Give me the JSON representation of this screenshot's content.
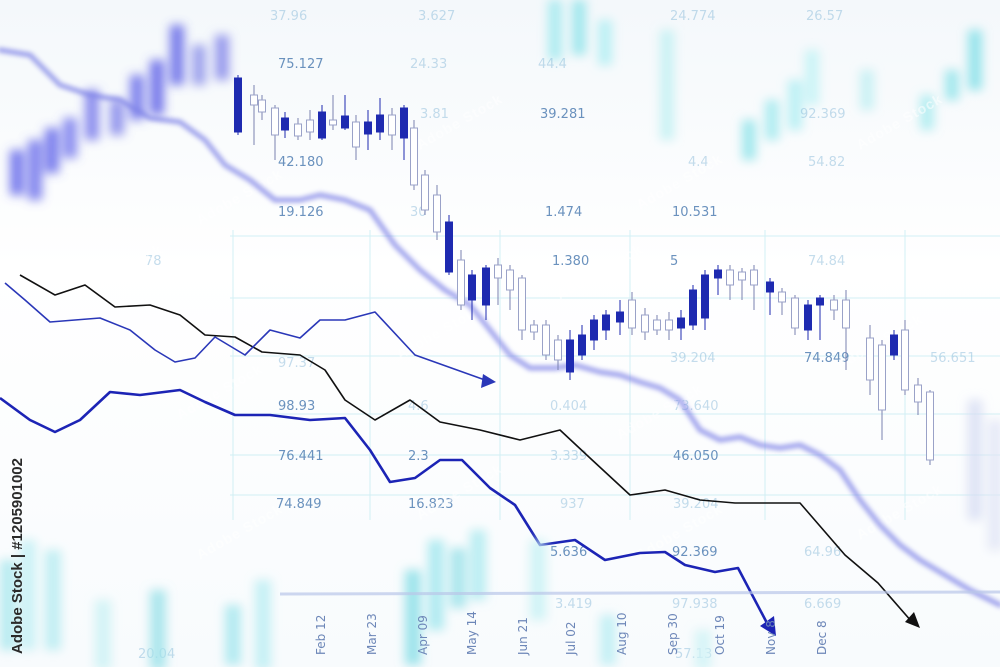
{
  "image": {
    "stock_id_text": "Adobe Stock | #1205901002",
    "watermark_text": "Adobe Stock",
    "date_labels": [
      "Feb 12",
      "Mar 23",
      "Apr 09",
      "May 14",
      "Jun 21",
      "Jul 02",
      "Aug 10",
      "Sep 30",
      "Oct 19",
      "Nov 8",
      "Dec 8"
    ],
    "numbers": [
      {
        "text": "37.96",
        "faint": true
      },
      {
        "text": "3.627",
        "faint": true
      },
      {
        "text": "24.774",
        "faint": true
      },
      {
        "text": "26.57",
        "faint": true
      },
      {
        "text": "75.127",
        "faint": false
      },
      {
        "text": "24.33",
        "faint": true
      },
      {
        "text": "44.4",
        "faint": true
      },
      {
        "text": "3.81",
        "faint": true
      },
      {
        "text": "39.281",
        "faint": false
      },
      {
        "text": "92.369",
        "faint": true
      },
      {
        "text": "42.180",
        "faint": false
      },
      {
        "text": "4.4",
        "faint": true
      },
      {
        "text": "54.82",
        "faint": true
      },
      {
        "text": "19.126",
        "faint": false
      },
      {
        "text": "30",
        "faint": true
      },
      {
        "text": "1.474",
        "faint": false
      },
      {
        "text": "10.531",
        "faint": false
      },
      {
        "text": "78",
        "faint": true
      },
      {
        "text": "1.380",
        "faint": false
      },
      {
        "text": "5",
        "faint": false
      },
      {
        "text": "74.84",
        "faint": true
      },
      {
        "text": "39.204",
        "faint": true
      },
      {
        "text": "74.849",
        "faint": false
      },
      {
        "text": "56.651",
        "faint": true
      },
      {
        "text": "97.37",
        "faint": true
      },
      {
        "text": "98.93",
        "faint": false
      },
      {
        "text": "4.6",
        "faint": true
      },
      {
        "text": "0.404",
        "faint": true
      },
      {
        "text": "73.640",
        "faint": true
      },
      {
        "text": "76.441",
        "faint": false
      },
      {
        "text": "2.3",
        "faint": false
      },
      {
        "text": "3.339",
        "faint": true
      },
      {
        "text": "46.050",
        "faint": false
      },
      {
        "text": "74.849",
        "faint": false
      },
      {
        "text": "16.823",
        "faint": false
      },
      {
        "text": "937",
        "faint": true
      },
      {
        "text": "39.204",
        "faint": true
      },
      {
        "text": "5.636",
        "faint": false
      },
      {
        "text": "92.369",
        "faint": false
      },
      {
        "text": "64.96",
        "faint": true
      },
      {
        "text": "3.419",
        "faint": true
      },
      {
        "text": "97.938",
        "faint": true
      },
      {
        "text": "6.669",
        "faint": true
      },
      {
        "text": "20.04",
        "faint": true
      },
      {
        "text": "57.13",
        "faint": true
      }
    ]
  }
}
